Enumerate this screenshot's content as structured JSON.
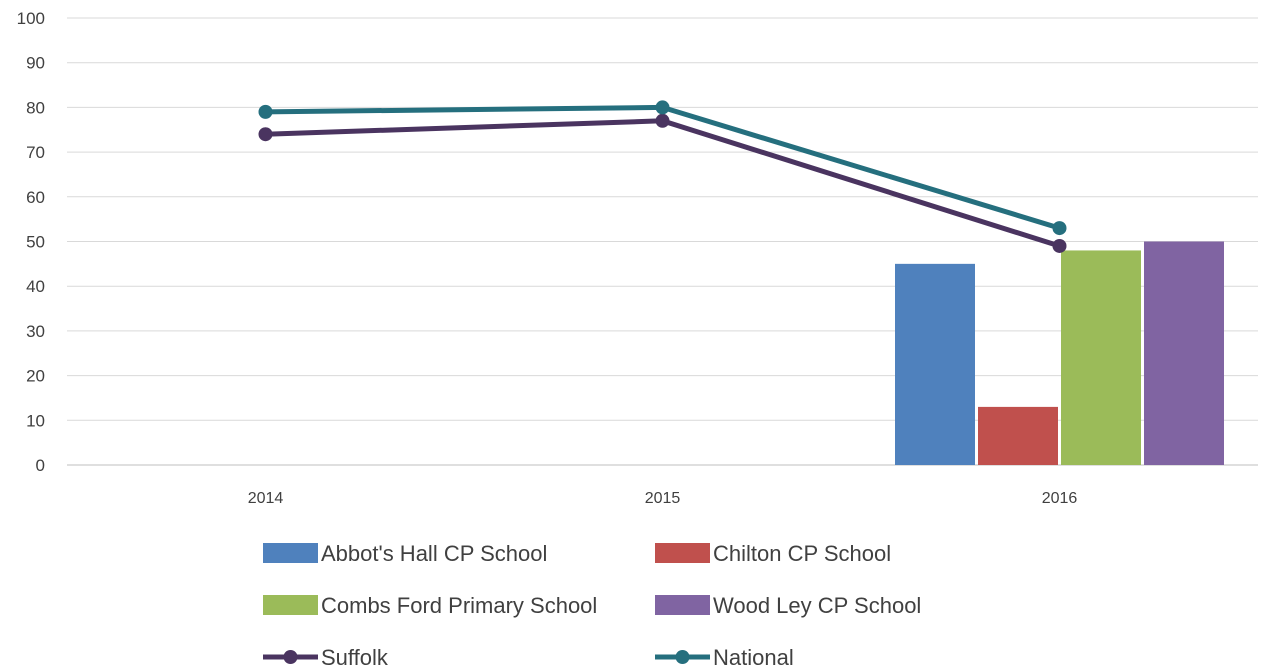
{
  "chart_data": {
    "type": "bar",
    "categories": [
      "2014",
      "2015",
      "2016"
    ],
    "ylim": [
      0,
      100
    ],
    "y_ticks": [
      0,
      10,
      20,
      30,
      40,
      50,
      60,
      70,
      80,
      90,
      100
    ],
    "grid": true,
    "legend_position": "bottom",
    "bar_series": [
      {
        "name": "Abbot's Hall CP School",
        "color": "#4f81bd",
        "values": [
          null,
          null,
          45
        ]
      },
      {
        "name": "Chilton CP School",
        "color": "#c0504d",
        "values": [
          null,
          null,
          13
        ]
      },
      {
        "name": "Combs Ford Primary School",
        "color": "#9bbb59",
        "values": [
          null,
          null,
          48
        ]
      },
      {
        "name": "Wood Ley CP School",
        "color": "#8064a2",
        "values": [
          null,
          null,
          50
        ]
      }
    ],
    "line_series": [
      {
        "name": "Suffolk",
        "color": "#4a3460",
        "values": [
          74,
          77,
          49
        ]
      },
      {
        "name": "National",
        "color": "#256f7e",
        "values": [
          79,
          80,
          53
        ]
      }
    ]
  }
}
